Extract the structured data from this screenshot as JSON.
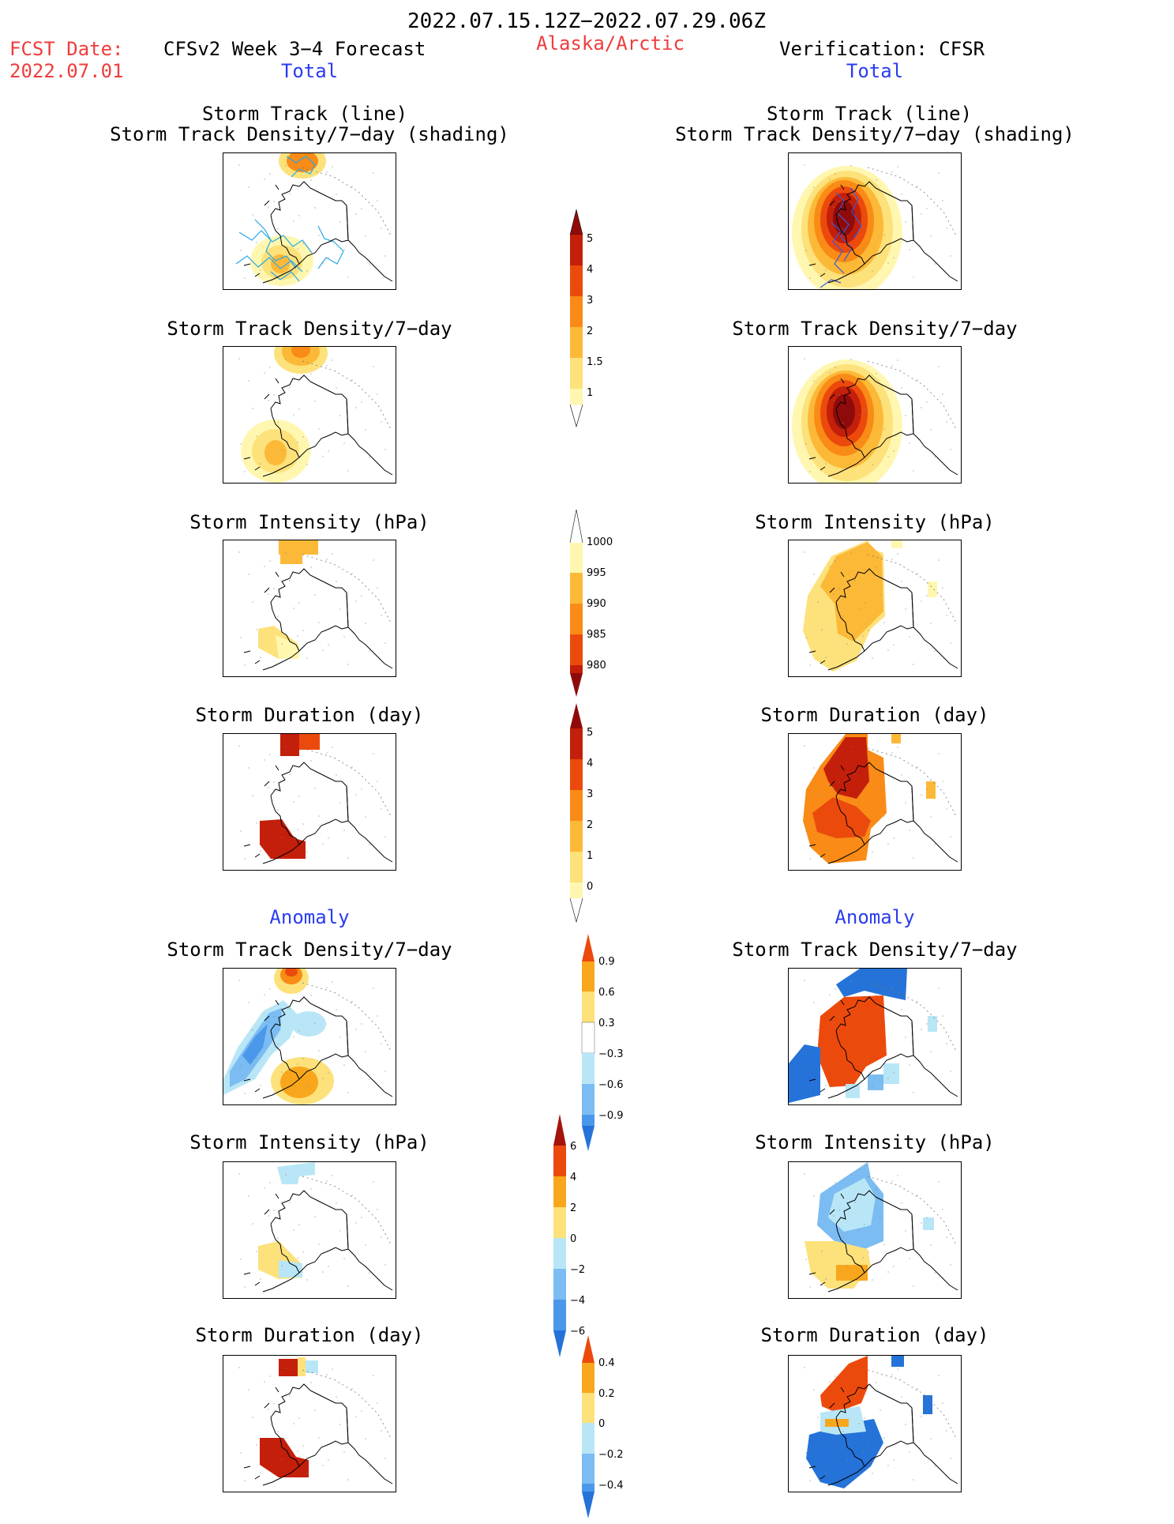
{
  "header": {
    "period": "2022.07.15.12Z−2022.07.29.06Z",
    "fcst_label": "FCST Date:",
    "fcst_date": "2022.07.01",
    "model": "CFSv2 Week 3−4 Forecast",
    "region": "Alaska/Arctic",
    "verification": "Verification: CFSR",
    "left_total": "Total",
    "right_total": "Total",
    "left_anomaly": "Anomaly",
    "right_anomaly": "Anomaly"
  },
  "panel_titles": {
    "track_line": "Storm Track (line)",
    "track_shading": "Storm Track Density/7−day (shading)",
    "density": "Storm Track Density/7−day",
    "intensity": "Storm Intensity (hPa)",
    "duration": "Storm Duration (day)"
  },
  "colorbars": {
    "density_total": [
      "1",
      "1.5",
      "2",
      "3",
      "4",
      "5"
    ],
    "intensity_total": [
      "1000",
      "995",
      "990",
      "985",
      "980"
    ],
    "duration_total": [
      "0",
      "1",
      "2",
      "3",
      "4",
      "5"
    ],
    "density_anom": [
      "−0.9",
      "−0.6",
      "−0.3",
      "0.3",
      "0.6",
      "0.9"
    ],
    "intensity_anom": [
      "−6",
      "−4",
      "−2",
      "0",
      "2",
      "4",
      "6"
    ],
    "duration_anom": [
      "−0.4",
      "−0.2",
      "0",
      "0.2",
      "0.4"
    ]
  },
  "colors": {
    "warm": [
      "#fff7b0",
      "#fde17a",
      "#fcb938",
      "#f98b16",
      "#ec4a0c",
      "#c31f0a",
      "#8f0b0b"
    ],
    "anom": [
      "#2573d8",
      "#4b97ea",
      "#7bbcf2",
      "#b8e6f6",
      "#ffffff",
      "#fde17a",
      "#f8a71d",
      "#ec4a0c",
      "#a5140c"
    ],
    "track_forecast": "#26a8e6",
    "track_verification": "#3a5bd8"
  }
}
